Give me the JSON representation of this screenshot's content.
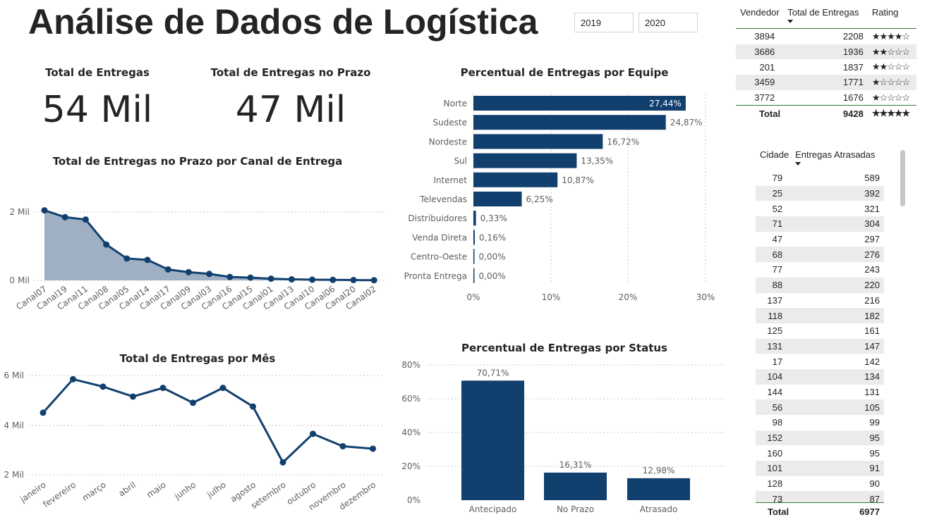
{
  "title": "Análise de Dados de Logística",
  "slicers": [
    "2019",
    "2020"
  ],
  "cards": [
    {
      "label": "Total de Entregas",
      "value": "54 Mil"
    },
    {
      "label": "Total de Entregas no Prazo",
      "value": "47 Mil"
    }
  ],
  "charts": {
    "canal": {
      "title": "Total de Entregas no Prazo por Canal de Entrega",
      "yticks": [
        "2 Mil",
        "0 Mil"
      ]
    },
    "mes": {
      "title": "Total de Entregas por Mês",
      "yticks": [
        "6 Mil",
        "4 Mil",
        "2 Mil"
      ]
    },
    "equipe": {
      "title": "Percentual de Entregas por Equipe",
      "xticks": [
        "0%",
        "10%",
        "20%",
        "30%"
      ]
    },
    "status": {
      "title": "Percentual de Entregas por Status",
      "yticks": [
        "80%",
        "60%",
        "40%",
        "20%",
        "0%"
      ]
    }
  },
  "chart_data": [
    {
      "type": "area",
      "title": "Total de Entregas no Prazo por Canal de Entrega",
      "categories": [
        "Canal07",
        "Canal19",
        "Canal11",
        "Canal08",
        "Canal05",
        "Canal14",
        "Canal17",
        "Canal09",
        "Canal03",
        "Canal16",
        "Canal15",
        "Canal01",
        "Canal13",
        "Canal10",
        "Canal06",
        "Canal20",
        "Canal02"
      ],
      "values": [
        2050,
        1850,
        1780,
        1050,
        640,
        600,
        320,
        240,
        190,
        100,
        80,
        50,
        30,
        20,
        15,
        10,
        5
      ],
      "ylim": [
        0,
        2000
      ],
      "color": "#12406e"
    },
    {
      "type": "line",
      "title": "Total de Entregas por Mês",
      "categories": [
        "janeiro",
        "fevereiro",
        "março",
        "abril",
        "maio",
        "junho",
        "julho",
        "agosto",
        "setembro",
        "outubro",
        "novembro",
        "dezembro"
      ],
      "values": [
        4500,
        5850,
        5550,
        5150,
        5500,
        4900,
        5500,
        4750,
        2500,
        3650,
        3150,
        3050
      ],
      "ylim": [
        2000,
        6000
      ],
      "color": "#12406e"
    },
    {
      "type": "bar",
      "orientation": "horizontal",
      "title": "Percentual de Entregas por Equipe",
      "categories": [
        "Norte",
        "Sudeste",
        "Nordeste",
        "Sul",
        "Internet",
        "Televendas",
        "Distribuidores",
        "Venda Direta",
        "Centro-Oeste",
        "Pronta Entrega"
      ],
      "values": [
        27.44,
        24.87,
        16.72,
        13.35,
        10.87,
        6.25,
        0.33,
        0.16,
        0.0,
        0.0
      ],
      "labels": [
        "27,44%",
        "24,87%",
        "16,72%",
        "13,35%",
        "10,87%",
        "6,25%",
        "0,33%",
        "0,16%",
        "0,00%",
        "0,00%"
      ],
      "xlim": [
        0,
        30
      ],
      "color": "#12406e"
    },
    {
      "type": "bar",
      "title": "Percentual de Entregas por Status",
      "categories": [
        "Antecipado",
        "No Prazo",
        "Atrasado"
      ],
      "values": [
        70.71,
        16.31,
        12.98
      ],
      "labels": [
        "70,71%",
        "16,31%",
        "12,98%"
      ],
      "ylim": [
        0,
        80
      ],
      "color": "#12406e"
    }
  ],
  "vendedores": {
    "headers": [
      "Vendedor",
      "Total de Entregas",
      "Rating"
    ],
    "rows": [
      {
        "vendedor": "3894",
        "total": "2208",
        "rating": "★★★★☆"
      },
      {
        "vendedor": "3686",
        "total": "1936",
        "rating": "★★☆☆☆"
      },
      {
        "vendedor": "201",
        "total": "1837",
        "rating": "★★☆☆☆"
      },
      {
        "vendedor": "3459",
        "total": "1771",
        "rating": "★☆☆☆☆"
      },
      {
        "vendedor": "3772",
        "total": "1676",
        "rating": "★☆☆☆☆"
      }
    ],
    "total_label": "Total",
    "total_value": "9428",
    "total_rating": "★★★★★"
  },
  "cidades": {
    "headers": [
      "Cidade",
      "Entregas Atrasadas"
    ],
    "rows": [
      [
        "79",
        "589"
      ],
      [
        "25",
        "392"
      ],
      [
        "52",
        "321"
      ],
      [
        "71",
        "304"
      ],
      [
        "47",
        "297"
      ],
      [
        "68",
        "276"
      ],
      [
        "77",
        "243"
      ],
      [
        "88",
        "220"
      ],
      [
        "137",
        "216"
      ],
      [
        "118",
        "182"
      ],
      [
        "125",
        "161"
      ],
      [
        "131",
        "147"
      ],
      [
        "17",
        "142"
      ],
      [
        "104",
        "134"
      ],
      [
        "144",
        "131"
      ],
      [
        "56",
        "105"
      ],
      [
        "98",
        "99"
      ],
      [
        "152",
        "95"
      ],
      [
        "160",
        "95"
      ],
      [
        "101",
        "91"
      ],
      [
        "128",
        "90"
      ],
      [
        "73",
        "87"
      ]
    ],
    "total_label": "Total",
    "total_value": "6977"
  }
}
